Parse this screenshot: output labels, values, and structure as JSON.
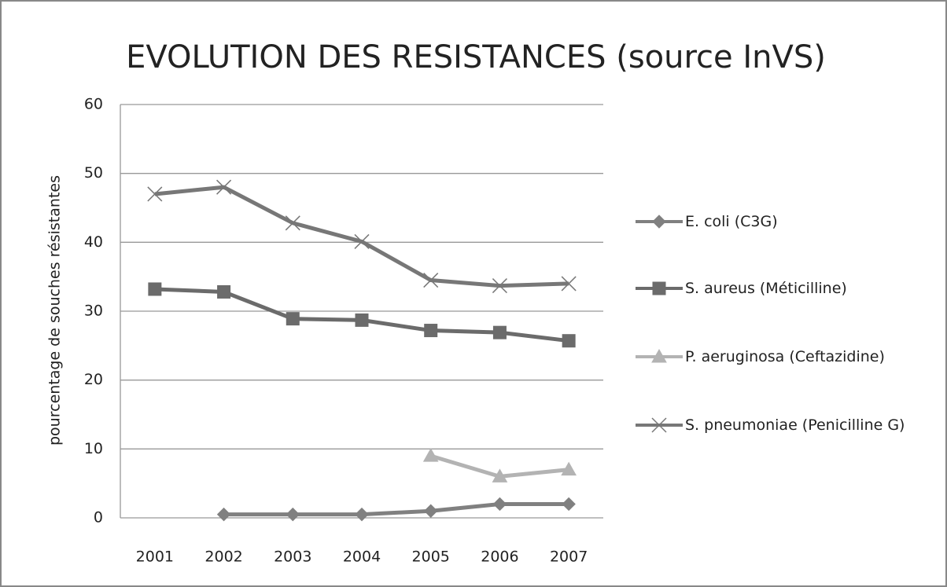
{
  "chart_data": {
    "type": "line",
    "title": "EVOLUTION DES RESISTANCES (source InVS)",
    "y_label": "pourcentage de souches résistantes",
    "categories": [
      "2001",
      "2002",
      "2003",
      "2004",
      "2005",
      "2006",
      "2007"
    ],
    "series": [
      {
        "name": "E. coli (C3G)",
        "color": "#808080",
        "marker": "diamond",
        "values": [
          null,
          0.5,
          0.5,
          0.5,
          1,
          2,
          2
        ]
      },
      {
        "name": "S. aureus (Méticilline)",
        "color": "#6b6b6b",
        "marker": "square",
        "values": [
          33.2,
          32.8,
          28.9,
          28.7,
          27.2,
          26.9,
          25.7
        ]
      },
      {
        "name": "P. aeruginosa (Ceftazidine)",
        "color": "#b3b3b3",
        "marker": "triangle",
        "values": [
          null,
          null,
          null,
          null,
          9,
          6,
          7
        ]
      },
      {
        "name": "S. pneumoniae (Penicilline G)",
        "color": "#777777",
        "marker": "x",
        "values": [
          47,
          48,
          42.8,
          40.1,
          34.5,
          33.7,
          34
        ]
      }
    ],
    "ylim": [
      0,
      60
    ],
    "yticks": [
      0,
      10,
      20,
      30,
      40,
      50,
      60
    ],
    "grid": true,
    "legend": "right"
  }
}
